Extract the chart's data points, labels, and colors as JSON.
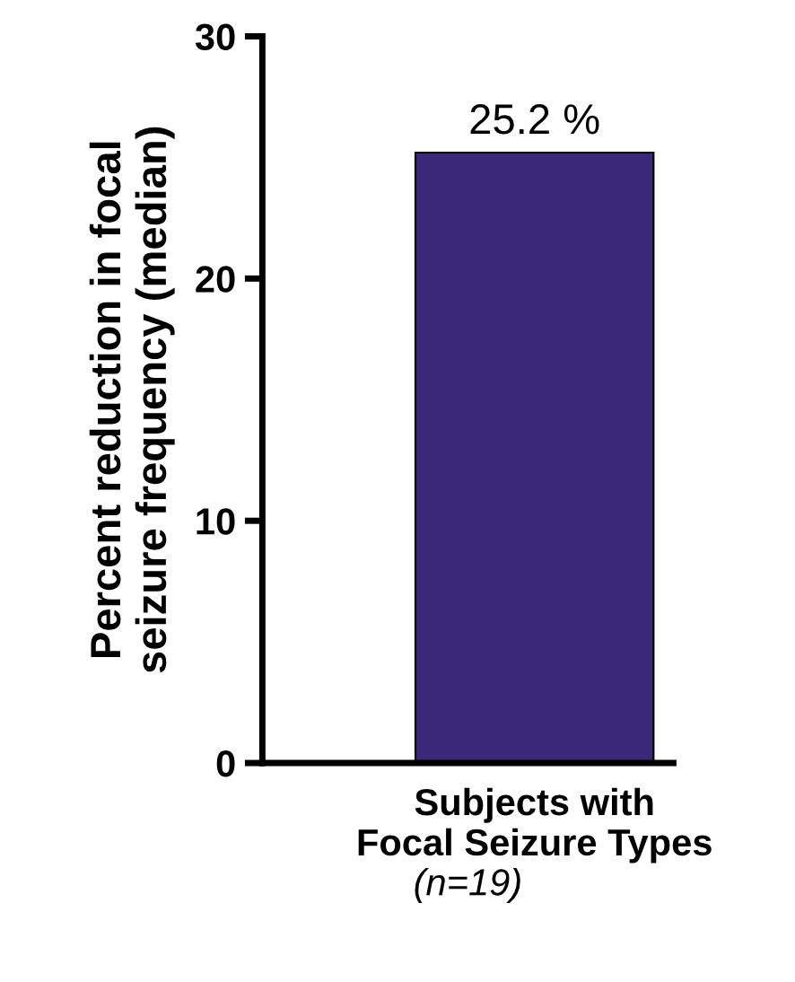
{
  "chart_data": {
    "type": "bar",
    "categories": [
      "Subjects with\nFocal Seizure Types"
    ],
    "values": [
      25.2
    ],
    "value_labels": [
      "25.2 %"
    ],
    "color": "#3c2878",
    "xlabel": "(n=19)",
    "ylabel": "Percent reduction in focal\nseizure frequency (median)",
    "ylim": [
      0,
      30
    ],
    "yticks": [
      0,
      10,
      20,
      30
    ],
    "grid": false,
    "legend": false
  }
}
